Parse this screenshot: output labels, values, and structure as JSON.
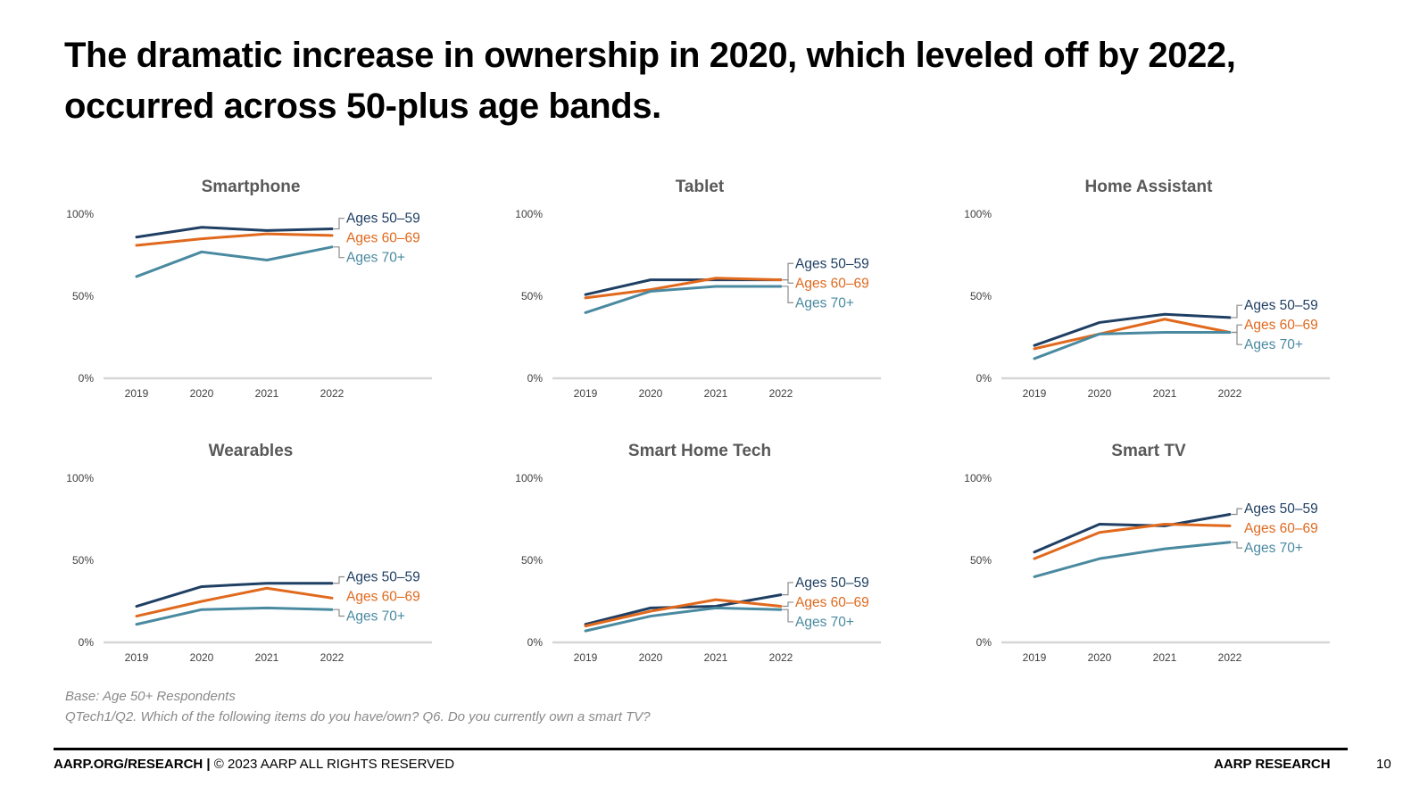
{
  "headline": {
    "line1": "The dramatic increase in ownership in 2020, which leveled off by 2022,",
    "line2": "occurred across 50-plus age bands."
  },
  "colors": {
    "ages_50_59": "#1f3f63",
    "ages_60_69": "#e0691d",
    "ages_70_plus": "#4a8aa0",
    "axis": "#d6d6d6",
    "title": "#595959",
    "tick": "#404040",
    "bracket": "#8c8c8c"
  },
  "chart_data": [
    {
      "type": "line",
      "title": "Smartphone",
      "x": [
        "2019",
        "2020",
        "2021",
        "2022"
      ],
      "yticks": [
        "0%",
        "50%",
        "100%"
      ],
      "ylim": [
        0,
        100
      ],
      "series": [
        {
          "name": "Ages 50–59",
          "key": "ages_50_59",
          "values": [
            86,
            92,
            90,
            91
          ]
        },
        {
          "name": "Ages 60–69",
          "key": "ages_60_69",
          "values": [
            81,
            85,
            88,
            87
          ]
        },
        {
          "name": "Ages 70+",
          "key": "ages_70_plus",
          "values": [
            62,
            77,
            72,
            80
          ]
        }
      ]
    },
    {
      "type": "line",
      "title": "Tablet",
      "x": [
        "2019",
        "2020",
        "2021",
        "2022"
      ],
      "yticks": [
        "0%",
        "50%",
        "100%"
      ],
      "ylim": [
        0,
        100
      ],
      "series": [
        {
          "name": "Ages 50–59",
          "key": "ages_50_59",
          "values": [
            51,
            60,
            60,
            60
          ]
        },
        {
          "name": "Ages 60–69",
          "key": "ages_60_69",
          "values": [
            49,
            54,
            61,
            60
          ]
        },
        {
          "name": "Ages 70+",
          "key": "ages_70_plus",
          "values": [
            40,
            53,
            56,
            56
          ]
        }
      ]
    },
    {
      "type": "line",
      "title": "Home Assistant",
      "x": [
        "2019",
        "2020",
        "2021",
        "2022"
      ],
      "yticks": [
        "0%",
        "50%",
        "100%"
      ],
      "ylim": [
        0,
        100
      ],
      "series": [
        {
          "name": "Ages 50–59",
          "key": "ages_50_59",
          "values": [
            20,
            34,
            39,
            37
          ]
        },
        {
          "name": "Ages 60–69",
          "key": "ages_60_69",
          "values": [
            18,
            27,
            36,
            28
          ]
        },
        {
          "name": "Ages 70+",
          "key": "ages_70_plus",
          "values": [
            12,
            27,
            28,
            28
          ]
        }
      ]
    },
    {
      "type": "line",
      "title": "Wearables",
      "x": [
        "2019",
        "2020",
        "2021",
        "2022"
      ],
      "yticks": [
        "0%",
        "50%",
        "100%"
      ],
      "ylim": [
        0,
        100
      ],
      "series": [
        {
          "name": "Ages 50–59",
          "key": "ages_50_59",
          "values": [
            22,
            34,
            36,
            36
          ]
        },
        {
          "name": "Ages 60–69",
          "key": "ages_60_69",
          "values": [
            16,
            25,
            33,
            27
          ]
        },
        {
          "name": "Ages 70+",
          "key": "ages_70_plus",
          "values": [
            11,
            20,
            21,
            20
          ]
        }
      ]
    },
    {
      "type": "line",
      "title": "Smart Home Tech",
      "x": [
        "2019",
        "2020",
        "2021",
        "2022"
      ],
      "yticks": [
        "0%",
        "50%",
        "100%"
      ],
      "ylim": [
        0,
        100
      ],
      "series": [
        {
          "name": "Ages 50–59",
          "key": "ages_50_59",
          "values": [
            11,
            21,
            22,
            29
          ]
        },
        {
          "name": "Ages 60–69",
          "key": "ages_60_69",
          "values": [
            10,
            19,
            26,
            22
          ]
        },
        {
          "name": "Ages 70+",
          "key": "ages_70_plus",
          "values": [
            7,
            16,
            21,
            20
          ]
        }
      ]
    },
    {
      "type": "line",
      "title": "Smart TV",
      "x": [
        "2019",
        "2020",
        "2021",
        "2022"
      ],
      "yticks": [
        "0%",
        "50%",
        "100%"
      ],
      "ylim": [
        0,
        100
      ],
      "series": [
        {
          "name": "Ages 50–59",
          "key": "ages_50_59",
          "values": [
            55,
            72,
            71,
            78
          ]
        },
        {
          "name": "Ages 60–69",
          "key": "ages_60_69",
          "values": [
            51,
            67,
            72,
            71
          ]
        },
        {
          "name": "Ages 70+",
          "key": "ages_70_plus",
          "values": [
            40,
            51,
            57,
            61
          ]
        }
      ]
    }
  ],
  "footnotes": {
    "base": "Base: Age 50+ Respondents",
    "question": "QTech1/Q2. Which of the following items do you have/own? Q6. Do you currently own a smart TV?"
  },
  "footer": {
    "site": "AARP.ORG/RESEARCH",
    "separator": " | ",
    "copyright": "© 2023 AARP ALL RIGHTS RESERVED",
    "brand": "AARP RESEARCH",
    "page_number": "10"
  }
}
